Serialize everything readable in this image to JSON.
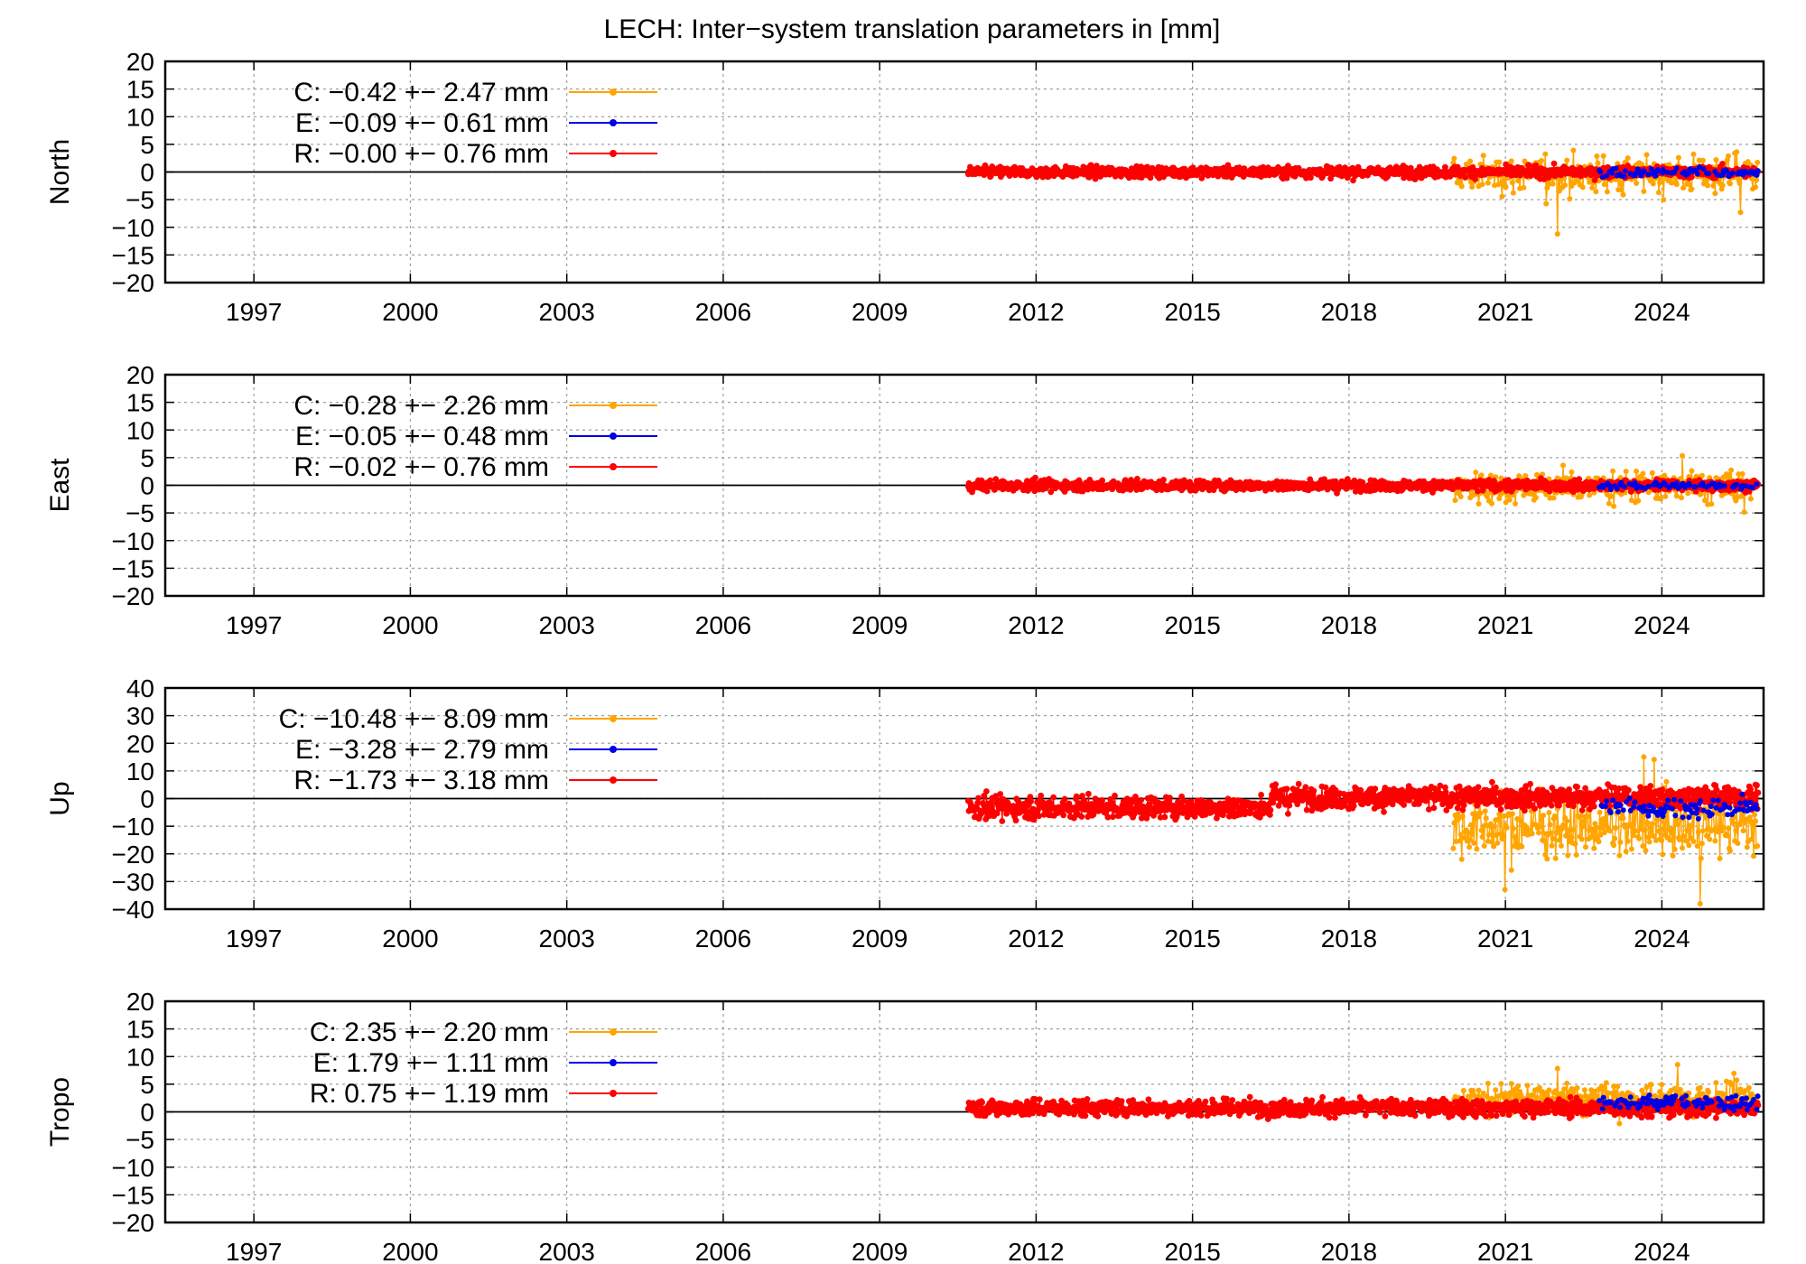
{
  "title": "LECH: Inter−system translation parameters in [mm]",
  "colors": {
    "C": "#ffa500",
    "E": "#0000e6",
    "R": "#ff0000"
  },
  "chart_data": [
    {
      "type": "line",
      "ylabel": "North",
      "ylim": [
        -20,
        20
      ],
      "yticks": [
        "20",
        "15",
        "10",
        "5",
        "0",
        "−5",
        "−10",
        "−15",
        "−20"
      ],
      "xlim": [
        1995.3,
        2025.95
      ],
      "xticks": [
        "1997",
        "2000",
        "2003",
        "2006",
        "2009",
        "2012",
        "2015",
        "2018",
        "2021",
        "2024"
      ],
      "grid": true,
      "legend": "top-left",
      "series": [
        {
          "name": "C",
          "label": "C:  −0.42 +− 2.47 mm",
          "mean": -0.42,
          "std": 2.47,
          "start": 2020.0,
          "end": 2025.85
        },
        {
          "name": "E",
          "label": "E:  −0.09 +− 0.61 mm",
          "mean": -0.09,
          "std": 0.61,
          "start": 2022.8,
          "end": 2025.85
        },
        {
          "name": "R",
          "label": "R:  −0.00 +− 0.76 mm",
          "mean": 0.0,
          "std": 0.76,
          "start": 2010.7,
          "end": 2025.85
        }
      ]
    },
    {
      "type": "line",
      "ylabel": "East",
      "ylim": [
        -20,
        20
      ],
      "yticks": [
        "20",
        "15",
        "10",
        "5",
        "0",
        "−5",
        "−10",
        "−15",
        "−20"
      ],
      "xlim": [
        1995.3,
        2025.95
      ],
      "xticks": [
        "1997",
        "2000",
        "2003",
        "2006",
        "2009",
        "2012",
        "2015",
        "2018",
        "2021",
        "2024"
      ],
      "grid": true,
      "legend": "top-left",
      "series": [
        {
          "name": "C",
          "label": "C:  −0.28 +− 2.26 mm",
          "mean": -0.28,
          "std": 2.26,
          "start": 2020.0,
          "end": 2025.85
        },
        {
          "name": "E",
          "label": "E:  −0.05 +− 0.48 mm",
          "mean": -0.05,
          "std": 0.48,
          "start": 2022.8,
          "end": 2025.85
        },
        {
          "name": "R",
          "label": "R:  −0.02 +− 0.76 mm",
          "mean": -0.02,
          "std": 0.76,
          "start": 2010.7,
          "end": 2025.85
        }
      ]
    },
    {
      "type": "line",
      "ylabel": "Up",
      "ylim": [
        -40,
        40
      ],
      "yticks": [
        "40",
        "30",
        "20",
        "10",
        "0",
        "−10",
        "−20",
        "−30",
        "−40"
      ],
      "xlim": [
        1995.3,
        2025.95
      ],
      "xticks": [
        "1997",
        "2000",
        "2003",
        "2006",
        "2009",
        "2012",
        "2015",
        "2018",
        "2021",
        "2024"
      ],
      "grid": true,
      "legend": "top-left",
      "series": [
        {
          "name": "C",
          "label": "C: −10.48 +− 8.09 mm",
          "mean": -10.48,
          "std": 8.09,
          "start": 2020.0,
          "end": 2025.85
        },
        {
          "name": "E",
          "label": "E:  −3.28 +− 2.79 mm",
          "mean": -3.28,
          "std": 2.79,
          "start": 2022.8,
          "end": 2025.85
        },
        {
          "name": "R",
          "label": "R:  −1.73 +− 3.18 mm",
          "mean": -1.73,
          "std": 3.18,
          "start": 2010.7,
          "end": 2025.85
        }
      ]
    },
    {
      "type": "line",
      "ylabel": "Tropo",
      "ylim": [
        -20,
        20
      ],
      "yticks": [
        "20",
        "15",
        "10",
        "5",
        "0",
        "−5",
        "−10",
        "−15",
        "−20"
      ],
      "xlim": [
        1995.3,
        2025.95
      ],
      "xticks": [
        "1997",
        "2000",
        "2003",
        "2006",
        "2009",
        "2012",
        "2015",
        "2018",
        "2021",
        "2024"
      ],
      "grid": true,
      "legend": "top-left",
      "series": [
        {
          "name": "C",
          "label": "C:   2.35 +− 2.20 mm",
          "mean": 2.35,
          "std": 2.2,
          "start": 2020.0,
          "end": 2025.85
        },
        {
          "name": "E",
          "label": "E:   1.79 +− 1.11 mm",
          "mean": 1.79,
          "std": 1.11,
          "start": 2022.8,
          "end": 2025.85
        },
        {
          "name": "R",
          "label": "R:   0.75 +− 1.19 mm",
          "mean": 0.75,
          "std": 1.19,
          "start": 2010.7,
          "end": 2025.85
        }
      ]
    }
  ]
}
